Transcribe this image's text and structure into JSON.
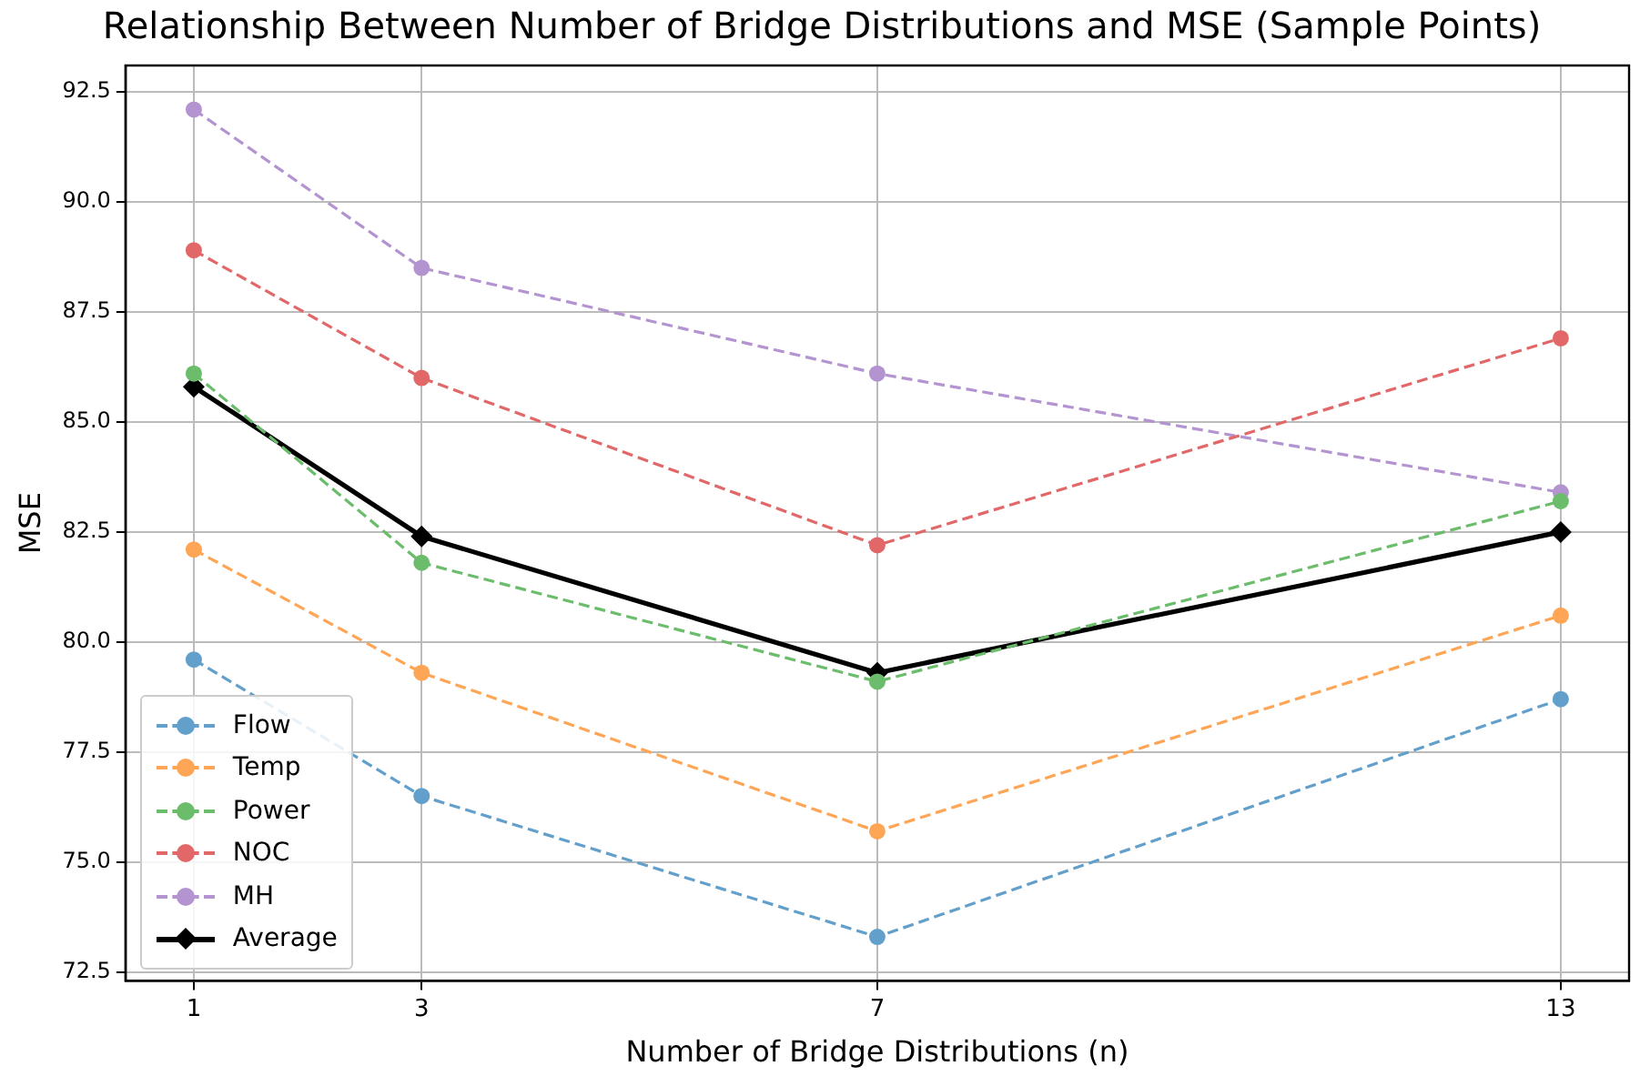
{
  "chart_data": {
    "type": "line",
    "title": "Relationship Between Number of Bridge Distributions and MSE (Sample Points)",
    "xlabel": "Number of Bridge Distributions (n)",
    "ylabel": "MSE",
    "x": [
      1,
      3,
      7,
      13
    ],
    "series": [
      {
        "name": "Flow",
        "color": "#62a0cb",
        "values": [
          79.6,
          76.5,
          73.3,
          78.7
        ],
        "marker": "circle",
        "line_style": "dashed"
      },
      {
        "name": "Temp",
        "color": "#ffa556",
        "values": [
          82.1,
          79.3,
          75.7,
          80.6
        ],
        "marker": "circle",
        "line_style": "dashed"
      },
      {
        "name": "Power",
        "color": "#6bbc6b",
        "values": [
          86.1,
          81.8,
          79.1,
          83.2
        ],
        "marker": "circle",
        "line_style": "dashed"
      },
      {
        "name": "NOC",
        "color": "#e26768",
        "values": [
          88.9,
          86.0,
          82.2,
          86.9
        ],
        "marker": "circle",
        "line_style": "dashed"
      },
      {
        "name": "MH",
        "color": "#b494d0",
        "values": [
          92.1,
          88.5,
          86.1,
          83.4
        ],
        "marker": "circle",
        "line_style": "dashed"
      },
      {
        "name": "Average",
        "color": "#000000",
        "values": [
          85.8,
          82.4,
          79.3,
          82.5
        ],
        "marker": "diamond",
        "line_style": "solid"
      }
    ],
    "xlim": [
      0.4,
      13.6
    ],
    "xticks": [
      1,
      3,
      7,
      13
    ],
    "ylim": [
      72.3,
      93.1
    ],
    "yticks": [
      {
        "value": 72.5,
        "label": "72.5"
      },
      {
        "value": 75,
        "label": "75.0"
      },
      {
        "value": 77.5,
        "label": "77.5"
      },
      {
        "value": 80,
        "label": "80.0"
      },
      {
        "value": 82.5,
        "label": "82.5"
      },
      {
        "value": 85,
        "label": "85.0"
      },
      {
        "value": 87.5,
        "label": "87.5"
      },
      {
        "value": 90,
        "label": "90.0"
      },
      {
        "value": 92.5,
        "label": "92.5"
      }
    ],
    "grid": true,
    "legend": "bottom left"
  }
}
